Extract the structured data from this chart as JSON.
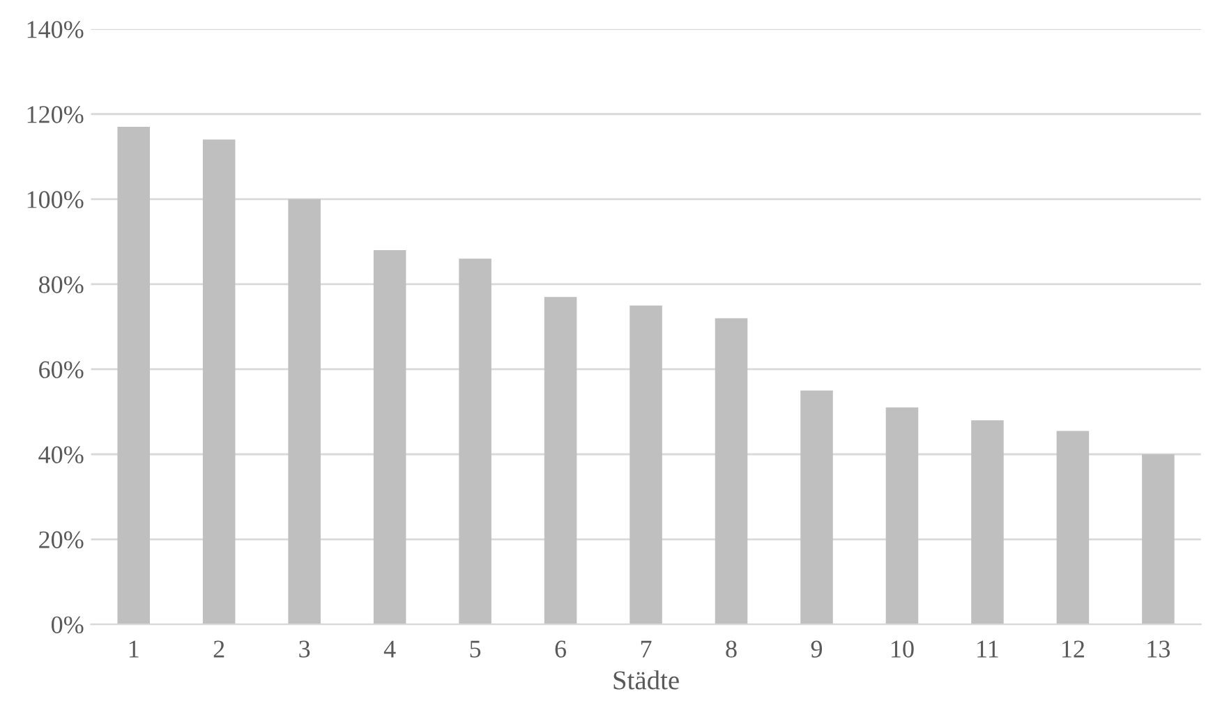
{
  "chart_data": {
    "type": "bar",
    "xlabel": "Städte",
    "categories": [
      "1",
      "2",
      "3",
      "4",
      "5",
      "6",
      "7",
      "8",
      "9",
      "10",
      "11",
      "12",
      "13"
    ],
    "values": [
      117,
      114,
      100,
      88,
      86,
      77,
      75,
      72,
      55,
      51,
      48,
      45.5,
      40
    ],
    "color": "#bfbfbf",
    "ylim": [
      0,
      140
    ],
    "yticks": [
      {
        "value": 0,
        "label": "0%"
      },
      {
        "value": 20,
        "label": "20%"
      },
      {
        "value": 40,
        "label": "40%"
      },
      {
        "value": 60,
        "label": "60%"
      },
      {
        "value": 80,
        "label": "80%"
      },
      {
        "value": 100,
        "label": "100%"
      },
      {
        "value": 120,
        "label": "120%"
      },
      {
        "value": 140,
        "label": "140%"
      }
    ],
    "grid": "y",
    "legend": false
  }
}
